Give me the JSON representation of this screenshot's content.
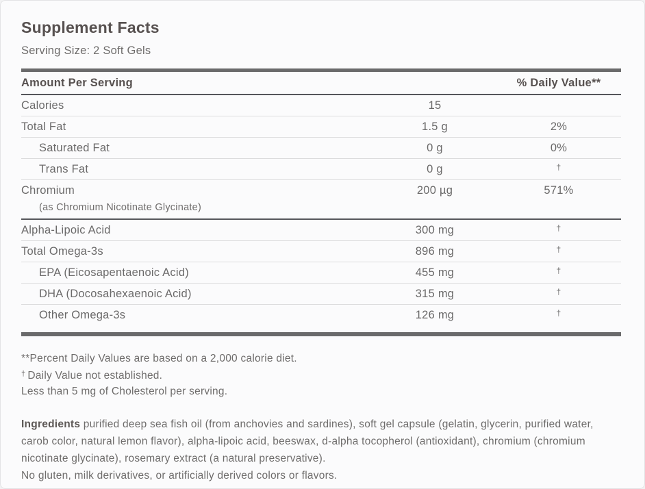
{
  "panel": {
    "title": "Supplement Facts",
    "serving_size": "Serving Size: 2 Soft Gels",
    "header": {
      "amount": "Amount Per Serving",
      "daily_value": "% Daily Value**"
    },
    "rows": [
      {
        "name": "Calories",
        "amount": "15",
        "dv": "",
        "indent": false,
        "sep": "light"
      },
      {
        "name": "Total Fat",
        "amount": "1.5 g",
        "dv": "2%",
        "indent": false,
        "sep": "light"
      },
      {
        "name": "Saturated Fat",
        "amount": "0 g",
        "dv": "0%",
        "indent": true,
        "sep": "light"
      },
      {
        "name": "Trans Fat",
        "amount": "0 g",
        "dv": "†",
        "indent": true,
        "sep": "light"
      },
      {
        "name": "Chromium",
        "subnote": "(as Chromium Nicotinate Glycinate)",
        "amount": "200 µg",
        "dv": "571%",
        "indent": false,
        "sep": "dark"
      },
      {
        "name": "Alpha-Lipoic Acid",
        "amount": "300 mg",
        "dv": "†",
        "indent": false,
        "sep": "light"
      },
      {
        "name": "Total Omega-3s",
        "amount": "896 mg",
        "dv": "†",
        "indent": false,
        "sep": "light"
      },
      {
        "name": "EPA (Eicosapentaenoic Acid)",
        "amount": "455 mg",
        "dv": "†",
        "indent": true,
        "sep": "light"
      },
      {
        "name": "DHA (Docosahexaenoic Acid)",
        "amount": "315 mg",
        "dv": "†",
        "indent": true,
        "sep": "light"
      },
      {
        "name": "Other Omega-3s",
        "amount": "126 mg",
        "dv": "†",
        "indent": true,
        "sep": "none"
      }
    ],
    "footnotes": [
      {
        "sup": "",
        "text": "**Percent Daily Values are based on a 2,000 calorie diet."
      },
      {
        "sup": "†",
        "text": "Daily Value not established."
      },
      {
        "sup": "",
        "text": "Less than 5 mg of Cholesterol per serving."
      }
    ],
    "ingredients": {
      "label": "Ingredients",
      "text": "purified deep sea fish oil (from anchovies and sardines), soft gel capsule (gelatin, glycerin, purified water, carob color, natural lemon flavor), alpha-lipoic acid, beeswax, d-alpha tocopherol (antioxidant), chromium (chromium nicotinate glycinate), rosemary extract (a natural preservative).",
      "footer": "No gluten, milk derivatives, or artificially derived colors or flavors."
    },
    "colors": {
      "bar": "#6a6a6b",
      "line_dark": "#55565a",
      "line_light": "#dcdcdd",
      "text_dark": "#575150",
      "text_body": "#6b6a6a",
      "background": "#fbfbfc"
    }
  }
}
